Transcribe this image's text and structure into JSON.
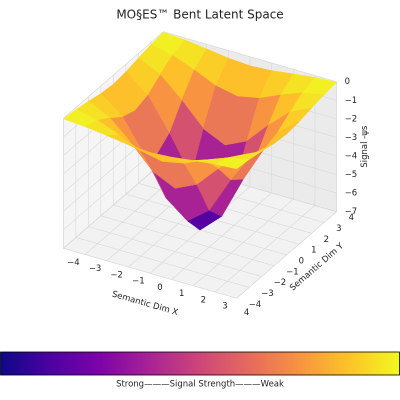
{
  "chart_data": {
    "type": "surface",
    "title": "MO§ES™ Bent Latent Space",
    "xlabel": "Semantic Dim X",
    "ylabel": "Semantic Dim Y",
    "zlabel": "Signal -ψs",
    "x": [
      -4,
      -3,
      -2,
      -1,
      0,
      1,
      2,
      3,
      4
    ],
    "y": [
      -4,
      -3,
      -2,
      -1,
      0,
      1,
      2,
      3,
      4
    ],
    "z": [
      [
        -0.03,
        -0.11,
        -0.25,
        -0.41,
        -0.49,
        -0.41,
        -0.25,
        -0.11,
        -0.03
      ],
      [
        -0.11,
        -0.35,
        -0.8,
        -1.32,
        -1.56,
        -1.32,
        -0.8,
        -0.35,
        -0.11
      ],
      [
        -0.25,
        -0.8,
        -1.85,
        -3.04,
        -3.59,
        -3.04,
        -1.85,
        -0.8,
        -0.25
      ],
      [
        -0.41,
        -1.32,
        -3.04,
        -5.02,
        -5.93,
        -5.02,
        -3.04,
        -1.32,
        -0.41
      ],
      [
        -0.49,
        -1.56,
        -3.59,
        -5.93,
        -7.0,
        -5.93,
        -3.59,
        -1.56,
        -0.49
      ],
      [
        -0.41,
        -1.32,
        -3.04,
        -5.02,
        -5.93,
        -5.02,
        -3.04,
        -1.32,
        -0.41
      ],
      [
        -0.25,
        -0.8,
        -1.85,
        -3.04,
        -3.59,
        -3.04,
        -1.85,
        -0.8,
        -0.25
      ],
      [
        -0.11,
        -0.35,
        -0.8,
        -1.32,
        -1.56,
        -1.32,
        -0.8,
        -0.35,
        -0.11
      ],
      [
        -0.03,
        -0.11,
        -0.25,
        -0.41,
        -0.49,
        -0.41,
        -0.25,
        -0.11,
        -0.03
      ]
    ],
    "xlim": [
      -4,
      4
    ],
    "ylim": [
      -4,
      4
    ],
    "zlim": [
      -7,
      0
    ],
    "xticks": [
      {
        "value": -4,
        "label": "−4"
      },
      {
        "value": -3,
        "label": "−3"
      },
      {
        "value": -2,
        "label": "−2"
      },
      {
        "value": -1,
        "label": "−1"
      },
      0,
      1,
      2,
      3,
      4
    ],
    "yticks": [
      {
        "value": -4,
        "label": "−4"
      },
      {
        "value": -3,
        "label": "−3"
      },
      {
        "value": -2,
        "label": "−2"
      },
      {
        "value": -1,
        "label": "−1"
      },
      0,
      1,
      2,
      3,
      4
    ],
    "zticks": [
      0,
      {
        "value": -1,
        "label": "−1"
      },
      {
        "value": -2,
        "label": "−2"
      },
      {
        "value": -3,
        "label": "−3"
      },
      {
        "value": -4,
        "label": "−4"
      },
      {
        "value": -5,
        "label": "−5"
      },
      {
        "value": -6,
        "label": "−6"
      },
      {
        "value": -7,
        "label": "−7"
      }
    ],
    "colormap": "plasma",
    "colorbar_label": "Strong———Signal Strength———Weak",
    "grid": true
  }
}
